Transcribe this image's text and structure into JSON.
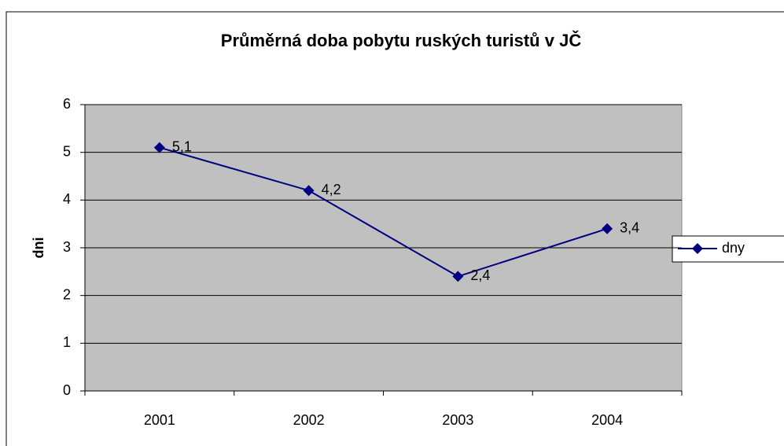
{
  "chart_data": {
    "type": "line",
    "title": "Průměrná doba pobytu ruských turistů v JČ",
    "y_label": "dni",
    "categories": [
      "2001",
      "2002",
      "2003",
      "2004"
    ],
    "series": [
      {
        "name": "dny",
        "color": "#000080",
        "values": [
          5.1,
          4.2,
          2.4,
          3.4
        ],
        "value_labels": [
          "5,1",
          "4,2",
          "2,4",
          "3,4"
        ]
      }
    ],
    "ylim": [
      0,
      6
    ],
    "yticks": [
      0,
      1,
      2,
      3,
      4,
      5,
      6
    ],
    "grid": true,
    "legend": "right"
  }
}
